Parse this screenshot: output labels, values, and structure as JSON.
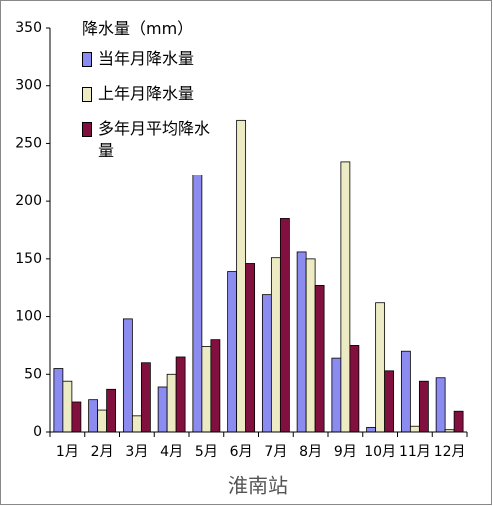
{
  "chart_data": {
    "type": "bar",
    "legend_title": "降水量（mm）",
    "x_label": "淮南站",
    "categories": [
      "1月",
      "2月",
      "3月",
      "4月",
      "5月",
      "6月",
      "7月",
      "8月",
      "9月",
      "10月",
      "11月",
      "12月"
    ],
    "series": [
      {
        "name": "当年月降水量",
        "color": "#8c8cf0",
        "values": [
          55,
          28,
          98,
          39,
          227,
          139,
          119,
          156,
          64,
          4,
          70,
          47
        ]
      },
      {
        "name": "上年月降水量",
        "color": "#ecebc4",
        "values": [
          44,
          19,
          14,
          50,
          74,
          270,
          151,
          150,
          234,
          112,
          5,
          2
        ]
      },
      {
        "name": "多年月平均降水量",
        "color": "#82103f",
        "values": [
          26,
          37,
          60,
          65,
          80,
          146,
          185,
          127,
          75,
          53,
          44,
          18
        ]
      }
    ],
    "ylim": [
      0,
      350
    ],
    "yticks": [
      0,
      50,
      100,
      150,
      200,
      250,
      300,
      350
    ],
    "legend": "upper left"
  }
}
